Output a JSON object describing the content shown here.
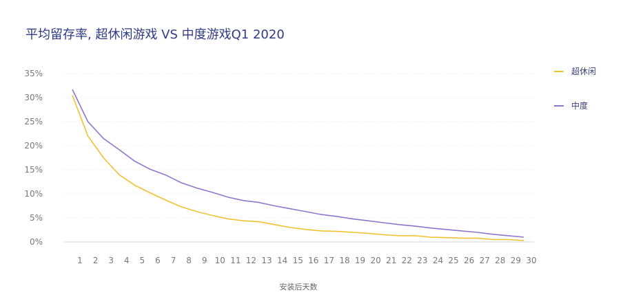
{
  "chart_data": {
    "type": "line",
    "title": "平均留存率, 超休闲游戏 VS 中度游戏Q1 2020",
    "xlabel": "安装后天数",
    "ylabel": "",
    "categories": [
      "1",
      "2",
      "3",
      "4",
      "5",
      "6",
      "7",
      "8",
      "9",
      "10",
      "11",
      "12",
      "13",
      "14",
      "15",
      "16",
      "17",
      "18",
      "19",
      "20",
      "21",
      "22",
      "23",
      "24",
      "25",
      "26",
      "27",
      "28",
      "29",
      "30"
    ],
    "ylim": [
      0,
      35
    ],
    "yticks": [
      "0%",
      "5%",
      "10%",
      "15%",
      "20%",
      "25%",
      "30%",
      "35%"
    ],
    "grid": true,
    "legend_position": "right",
    "series": [
      {
        "name": "超休闲",
        "color": "#f2c12e",
        "values": [
          30.5,
          22,
          17.5,
          14,
          11.8,
          10.2,
          8.7,
          7.3,
          6.3,
          5.5,
          4.8,
          4.4,
          4.2,
          3.6,
          3.0,
          2.6,
          2.3,
          2.2,
          2.0,
          1.8,
          1.5,
          1.3,
          1.3,
          1.0,
          0.9,
          0.8,
          0.8,
          0.5,
          0.5,
          0.3
        ]
      },
      {
        "name": "中度",
        "color": "#8f74cf",
        "values": [
          31.7,
          25,
          21.5,
          19.2,
          16.8,
          15.1,
          13.9,
          12.3,
          11.2,
          10.3,
          9.3,
          8.6,
          8.2,
          7.5,
          6.9,
          6.3,
          5.7,
          5.3,
          4.8,
          4.4,
          4.0,
          3.6,
          3.3,
          2.9,
          2.6,
          2.3,
          2.0,
          1.6,
          1.3,
          1.0
        ]
      }
    ]
  }
}
